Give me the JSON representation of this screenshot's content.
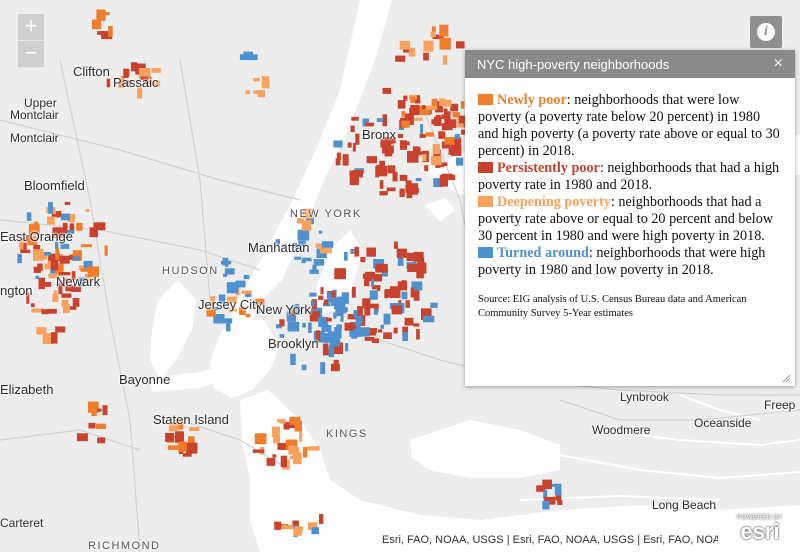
{
  "map": {
    "places": [
      {
        "id": "clifton",
        "label": "Clifton"
      },
      {
        "id": "passaic",
        "label": "Passaic"
      },
      {
        "id": "upper-montclair",
        "label": "Upper"
      },
      {
        "id": "upper-montclair-2",
        "label": "Montclair"
      },
      {
        "id": "montclair",
        "label": "Montclair"
      },
      {
        "id": "bloomfield",
        "label": "Bloomfield"
      },
      {
        "id": "east-orange",
        "label": "East Orange"
      },
      {
        "id": "newark",
        "label": "Newark"
      },
      {
        "id": "irvington",
        "label": "ngton"
      },
      {
        "id": "hudson",
        "label": "HUDSON"
      },
      {
        "id": "jersey-city",
        "label": "Jersey City"
      },
      {
        "id": "manhattan",
        "label": "Manhattan"
      },
      {
        "id": "new-york-county",
        "label": "NEW YORK"
      },
      {
        "id": "new-york",
        "label": "New York"
      },
      {
        "id": "bronx",
        "label": "Bronx"
      },
      {
        "id": "brooklyn",
        "label": "Brooklyn"
      },
      {
        "id": "bayonne",
        "label": "Bayonne"
      },
      {
        "id": "elizabeth",
        "label": "Elizabeth"
      },
      {
        "id": "staten-island",
        "label": "Staten Island"
      },
      {
        "id": "kings",
        "label": "KINGS"
      },
      {
        "id": "lynbrook",
        "label": "Lynbrook"
      },
      {
        "id": "woodmere",
        "label": "Woodmere"
      },
      {
        "id": "oceanside",
        "label": "Oceanside"
      },
      {
        "id": "freeport",
        "label": "Freep"
      },
      {
        "id": "long-beach",
        "label": "Long Beach"
      },
      {
        "id": "carteret",
        "label": "Carteret"
      },
      {
        "id": "richmond",
        "label": "RICHMOND"
      }
    ],
    "colors": {
      "newly_poor": "#f07c2c",
      "persistently_poor": "#c8422e",
      "deepening_poverty": "#f9a25e",
      "turned_around": "#4f90cf",
      "water": "#ffffff",
      "land": "#ededed"
    },
    "zoom_in_label": "+",
    "zoom_out_label": "−",
    "info_label": "i",
    "attribution": "Esri, FAO, NOAA, USGS | Esri, FAO, NOAA, USGS | Esri, FAO, NOAA, U...",
    "logo_powered": "POWERED BY",
    "logo_name": "esri"
  },
  "panel": {
    "title": "NYC high-poverty neighborhoods",
    "close_label": "×",
    "legend": [
      {
        "key": "newly_poor",
        "label": "Newly poor",
        "text": ": neighborhoods that were low poverty (a poverty rate below 20 percent) in 1980 and high poverty (a poverty rate above or equal to 30 percent) in 2018."
      },
      {
        "key": "persistently_poor",
        "label": "Persistently poor",
        "text": ": neighborhoods that had a high poverty rate in 1980 and 2018."
      },
      {
        "key": "deepening_poverty",
        "label": "Deepening poverty",
        "text": ": neighborhoods that had a poverty rate above or equal to 20 percent and below 30 percent in 1980 and were high poverty in 2018."
      },
      {
        "key": "turned_around",
        "label": "Turned around",
        "text": ": neighborhoods that were high poverty in 1980 and low poverty in 2018."
      }
    ],
    "source": "Source: EIG analysis of U.S. Census Bureau data and American Community Survey 5-Year estimates"
  }
}
